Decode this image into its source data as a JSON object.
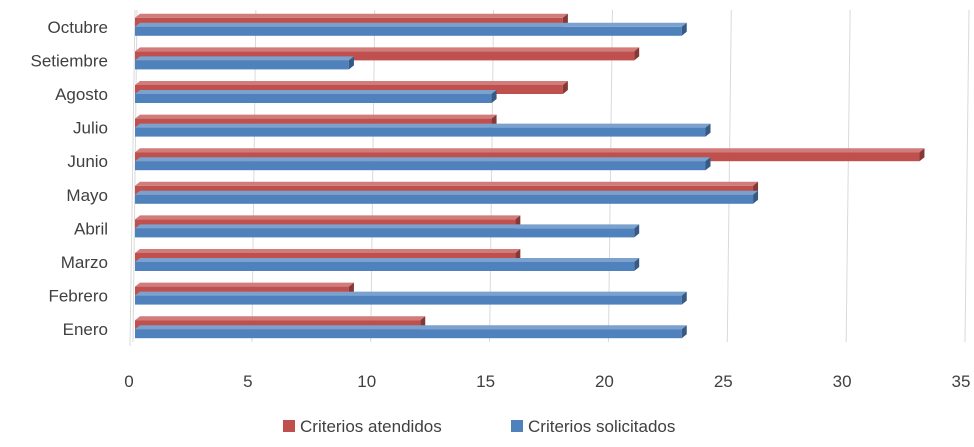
{
  "chart_data": {
    "type": "bar",
    "orientation": "horizontal",
    "categories": [
      "Enero",
      "Febrero",
      "Marzo",
      "Abril",
      "Mayo",
      "Junio",
      "Julio",
      "Agosto",
      "Setiembre",
      "Octubre"
    ],
    "series": [
      {
        "name": "Criterios atendidos",
        "color": "#C0504D",
        "values": [
          12,
          9,
          16,
          16,
          26,
          33,
          15,
          18,
          21,
          18
        ]
      },
      {
        "name": "Criterios solicitados",
        "color": "#4F81BD",
        "values": [
          23,
          23,
          21,
          21,
          26,
          24,
          24,
          15,
          9,
          23
        ]
      }
    ],
    "xlim": [
      0,
      35
    ],
    "x_ticks": [
      0,
      5,
      10,
      15,
      20,
      25,
      30,
      35
    ],
    "xlabel": "",
    "ylabel": "",
    "title": "",
    "grid": "vertical",
    "legend": "bottom",
    "style": "3d-bars"
  }
}
